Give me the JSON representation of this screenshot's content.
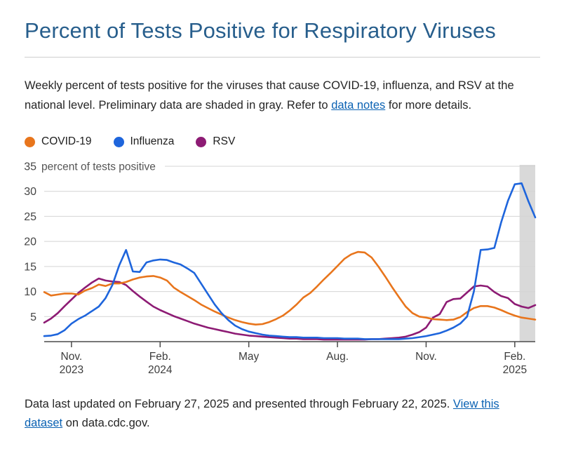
{
  "page": {
    "title": "Percent of Tests Positive for Respiratory Viruses",
    "description": {
      "text_before": "Weekly percent of tests positive for the viruses that cause COVID-19, influenza, and RSV at the national level. Preliminary data are shaded in gray. Refer to ",
      "link_label": "data notes",
      "text_after": " for more details."
    },
    "footer": {
      "text_before": "Data last updated on February 27, 2025 and presented through February 22, 2025. ",
      "link_label": "View this dataset",
      "text_after": " on data.cdc.gov."
    }
  },
  "legend": [
    {
      "label": "COVID-19",
      "color": "#e8751c"
    },
    {
      "label": "Influenza",
      "color": "#1e65dc"
    },
    {
      "label": "RSV",
      "color": "#8d1b74"
    }
  ],
  "colors": {
    "title": "#275e8c",
    "link": "#0b62b3",
    "body_text": "#252525",
    "gridline": "#d4d4d4",
    "axis_line": "#4a4a4a",
    "tick_label": "#3d3d3d",
    "y_label": "#454545",
    "preliminary_band": "#d9d9d9",
    "covid": "#e8751c",
    "influenza": "#1e65dc",
    "rsv": "#8d1b74"
  },
  "chart_data": {
    "type": "line",
    "title": "",
    "x_unit": "weeks",
    "weeks": 73,
    "grid": "horizontal-only",
    "legend_position": "above-chart",
    "y_axis": {
      "min": 0,
      "max": 35,
      "ticks": [
        5,
        10,
        15,
        20,
        25,
        30
      ],
      "top_tick_value": "35",
      "top_tick_suffix": "percent of tests positive"
    },
    "x_ticks": [
      {
        "week": 4,
        "line1": "Nov.",
        "line2": "2023"
      },
      {
        "week": 17,
        "line1": "Feb.",
        "line2": "2024"
      },
      {
        "week": 30,
        "line1": "May",
        "line2": ""
      },
      {
        "week": 43,
        "line1": "Aug.",
        "line2": ""
      },
      {
        "week": 56,
        "line1": "Nov.",
        "line2": ""
      },
      {
        "week": 69,
        "line1": "Feb.",
        "line2": "2025"
      }
    ],
    "preliminary_band_weeks": [
      69.7,
      72
    ],
    "series": [
      {
        "name": "RSV",
        "color": "#8d1b74",
        "values": [
          3.8,
          4.6,
          5.7,
          7.1,
          8.4,
          9.7,
          10.8,
          11.8,
          12.6,
          12.2,
          12.0,
          11.9,
          11.3,
          10.1,
          9.0,
          8.0,
          7.0,
          6.3,
          5.7,
          5.1,
          4.6,
          4.1,
          3.6,
          3.2,
          2.8,
          2.5,
          2.2,
          1.9,
          1.6,
          1.4,
          1.2,
          1.1,
          1.0,
          0.9,
          0.8,
          0.7,
          0.6,
          0.6,
          0.5,
          0.5,
          0.5,
          0.4,
          0.4,
          0.4,
          0.4,
          0.4,
          0.4,
          0.4,
          0.5,
          0.5,
          0.6,
          0.7,
          0.8,
          1.0,
          1.4,
          1.9,
          2.8,
          4.8,
          5.5,
          7.9,
          8.5,
          8.6,
          9.8,
          11.0,
          11.2,
          11.0,
          9.9,
          9.1,
          8.7,
          7.5,
          7.0,
          6.7,
          7.3
        ]
      },
      {
        "name": "COVID-19",
        "color": "#e8751c",
        "values": [
          9.9,
          9.2,
          9.4,
          9.6,
          9.6,
          9.4,
          10.2,
          10.7,
          11.4,
          11.1,
          11.6,
          11.6,
          11.9,
          12.4,
          12.8,
          13.0,
          13.1,
          12.8,
          12.2,
          10.8,
          9.9,
          9.1,
          8.3,
          7.4,
          6.7,
          6.0,
          5.4,
          4.8,
          4.3,
          3.9,
          3.6,
          3.4,
          3.5,
          3.9,
          4.5,
          5.2,
          6.2,
          7.4,
          8.8,
          9.7,
          11.0,
          12.4,
          13.7,
          15.1,
          16.5,
          17.4,
          17.9,
          17.8,
          16.8,
          15.0,
          13.0,
          10.9,
          8.9,
          7.0,
          5.7,
          5.0,
          4.8,
          4.5,
          4.4,
          4.3,
          4.4,
          4.9,
          5.9,
          6.7,
          7.1,
          7.1,
          6.8,
          6.3,
          5.7,
          5.2,
          4.8,
          4.6,
          4.4
        ]
      },
      {
        "name": "Influenza",
        "color": "#1e65dc",
        "values": [
          1.1,
          1.2,
          1.5,
          2.3,
          3.6,
          4.5,
          5.2,
          6.1,
          7.0,
          8.7,
          11.3,
          15.2,
          18.3,
          14.0,
          13.9,
          15.8,
          16.2,
          16.4,
          16.3,
          15.8,
          15.4,
          14.6,
          13.7,
          11.6,
          9.5,
          7.4,
          5.7,
          4.3,
          3.2,
          2.5,
          2.0,
          1.7,
          1.4,
          1.2,
          1.1,
          1.0,
          0.9,
          0.9,
          0.8,
          0.8,
          0.8,
          0.7,
          0.7,
          0.7,
          0.6,
          0.6,
          0.6,
          0.5,
          0.5,
          0.5,
          0.5,
          0.5,
          0.5,
          0.6,
          0.7,
          0.9,
          1.1,
          1.4,
          1.7,
          2.2,
          2.8,
          3.6,
          5.0,
          10.0,
          18.3,
          18.4,
          18.7,
          23.8,
          28.1,
          31.4,
          31.6,
          28.0,
          24.8
        ]
      }
    ]
  }
}
